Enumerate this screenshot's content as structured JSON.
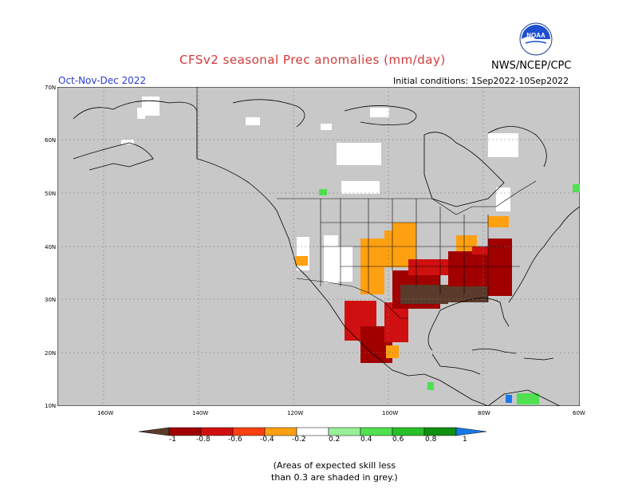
{
  "header": {
    "title": "CFSv2 seasonal Prec anomalies (mm/day)",
    "organization": "NWS/NCEP/CPC",
    "season": "Oct-Nov-Dec 2022",
    "initial_conditions": "Initial conditions: 1Sep2022-10Sep2022"
  },
  "logo": {
    "icon": "noaa-logo-icon",
    "text": "NOAA"
  },
  "map": {
    "lat_labels": [
      "70N",
      "60N",
      "50N",
      "40N",
      "30N",
      "20N",
      "10N"
    ],
    "lon_labels": [
      "160W",
      "140W",
      "120W",
      "100W",
      "80W",
      "60W"
    ],
    "colors": {
      "background": "#c8c8c8",
      "land_outline": "#000000",
      "low_skill_grey": "#c8c8c8",
      "near_normal_white": "#ffffff"
    }
  },
  "colorbar": {
    "labels": [
      "-1",
      "-0.8",
      "-0.6",
      "-0.4",
      "-0.2",
      "0.2",
      "0.4",
      "0.6",
      "0.8",
      "1"
    ],
    "colors": [
      "#5a3a2a",
      "#a00000",
      "#d01010",
      "#ff4010",
      "#ffa010",
      "#ffffff",
      "#98f098",
      "#50e050",
      "#28c028",
      "#109010",
      "#1878e8"
    ]
  },
  "note": {
    "line1": "(Areas of expected skill less",
    "line2": "than 0.3 are shaded in grey.)"
  }
}
